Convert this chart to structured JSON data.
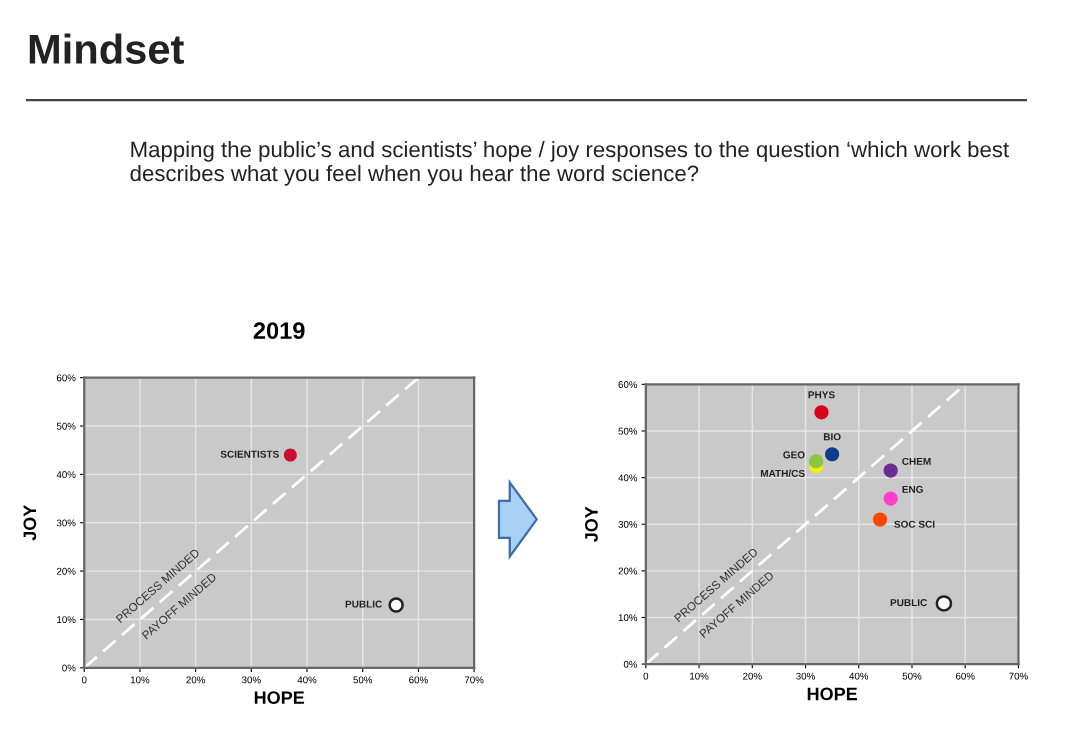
{
  "chart_data": [
    {
      "type": "scatter",
      "title": "2019",
      "xlabel": "HOPE",
      "ylabel": "JOY",
      "annotations": [
        "Mindset",
        "Mapping the public’s and scientists’ hope / joy responses to the question ‘which work best describes what you feel when you hear the word science?",
        "PROCESS MINDED",
        "PAYOFF MINDED"
      ],
      "xlim": [
        0,
        70
      ],
      "ylim": [
        0,
        60
      ],
      "xticks": [
        {
          "value": 0,
          "label": "0"
        },
        {
          "value": 10,
          "label": "10%"
        },
        {
          "value": 20,
          "label": "20%"
        },
        {
          "value": 30,
          "label": "30%"
        },
        {
          "value": 40,
          "label": "40%"
        },
        {
          "value": 50,
          "label": "50%"
        },
        {
          "value": 60,
          "label": "60%"
        },
        {
          "value": 70,
          "label": "70%"
        }
      ],
      "yticks": [
        {
          "value": 0,
          "label": "0%"
        },
        {
          "value": 10,
          "label": "10%"
        },
        {
          "value": 20,
          "label": "20%"
        },
        {
          "value": 30,
          "label": "30%"
        },
        {
          "value": 40,
          "label": "40%"
        },
        {
          "value": 50,
          "label": "50%"
        },
        {
          "value": 60,
          "label": "60%"
        }
      ],
      "grid": true,
      "marker": "circle",
      "series": [
        {
          "type": "line",
          "x": [
            0,
            60
          ],
          "values": [
            0,
            60
          ],
          "color": "#ffffff",
          "line_style": "dashed",
          "marker": "none"
        },
        {
          "name": "SCIENTISTS",
          "x": [
            37
          ],
          "values": [
            44
          ],
          "color": "#c8102e"
        },
        {
          "name": "PUBLIC",
          "x": [
            56
          ],
          "values": [
            13
          ],
          "color": "#ffffff"
        }
      ]
    },
    {
      "type": "scatter",
      "xlabel": "HOPE",
      "ylabel": "JOY",
      "annotations": [
        "PROCESS MINDED",
        "PAYOFF MINDED"
      ],
      "xlim": [
        0,
        70
      ],
      "ylim": [
        0,
        60
      ],
      "xticks": [
        {
          "value": 0,
          "label": "0"
        },
        {
          "value": 10,
          "label": "10%"
        },
        {
          "value": 20,
          "label": "20%"
        },
        {
          "value": 30,
          "label": "30%"
        },
        {
          "value": 40,
          "label": "40%"
        },
        {
          "value": 50,
          "label": "50%"
        },
        {
          "value": 60,
          "label": "60%"
        },
        {
          "value": 70,
          "label": "70%"
        }
      ],
      "yticks": [
        {
          "value": 0,
          "label": "0%"
        },
        {
          "value": 10,
          "label": "10%"
        },
        {
          "value": 20,
          "label": "20%"
        },
        {
          "value": 30,
          "label": "30%"
        },
        {
          "value": 40,
          "label": "40%"
        },
        {
          "value": 50,
          "label": "50%"
        },
        {
          "value": 60,
          "label": "60%"
        }
      ],
      "grid": true,
      "marker": "circle",
      "series": [
        {
          "type": "line",
          "x": [
            0,
            60
          ],
          "values": [
            0,
            60
          ],
          "color": "#ffffff",
          "line_style": "dashed",
          "marker": "none"
        },
        {
          "name": "PHYS",
          "x": [
            33
          ],
          "values": [
            54
          ],
          "color": "#d7001b"
        },
        {
          "name": "BIO",
          "x": [
            35
          ],
          "values": [
            45
          ],
          "color": "#0d3c8a"
        },
        {
          "name": "GEO",
          "x": [
            32
          ],
          "values": [
            43.5
          ],
          "color": "#8cc63f"
        },
        {
          "name": "MATH/CS",
          "x": [
            32
          ],
          "values": [
            42.5
          ],
          "color": "#f2f200"
        },
        {
          "name": "CHEM",
          "x": [
            46
          ],
          "values": [
            41.5
          ],
          "color": "#6a2c91"
        },
        {
          "name": "ENG",
          "x": [
            46
          ],
          "values": [
            35.5
          ],
          "color": "#ff3fd0"
        },
        {
          "name": "SOC SCI",
          "x": [
            44
          ],
          "values": [
            31
          ],
          "color": "#ff4500"
        },
        {
          "name": "PUBLIC",
          "x": [
            56
          ],
          "values": [
            13
          ],
          "color": "#ffffff"
        }
      ]
    }
  ]
}
